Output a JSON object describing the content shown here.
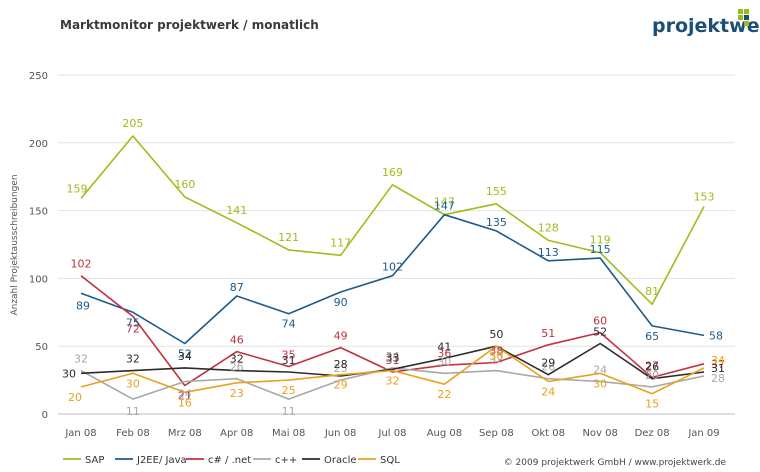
{
  "header": {
    "title": "Marktmonitor projektwerk / monatlich",
    "logo_text": "projektwerk"
  },
  "footer": {
    "copyright": "© 2009 projektwerk GmbH / www.projektwerk.de"
  },
  "chart_data": {
    "type": "line",
    "title": "Marktmonitor projektwerk / monatlich",
    "xlabel": "",
    "ylabel": "Anzahl Projektausschreibungen",
    "ylim": [
      0,
      250
    ],
    "yticks": [
      0,
      50,
      100,
      150,
      200,
      250
    ],
    "grid": true,
    "legend_position": "bottom",
    "categories": [
      "Jan 08",
      "Feb 08",
      "Mrz 08",
      "Apr 08",
      "Mai 08",
      "Jun 08",
      "Jul 08",
      "Aug 08",
      "Sep 08",
      "Okt 08",
      "Nov 08",
      "Dez 08",
      "Jan 09"
    ],
    "series": [
      {
        "name": "SAP",
        "color": "#9dbd1c",
        "values": [
          159,
          205,
          160,
          141,
          121,
          117,
          169,
          147,
          155,
          128,
          119,
          81,
          153
        ]
      },
      {
        "name": "J2EE/ Java",
        "color": "#1d5a8c",
        "values": [
          89,
          75,
          52,
          87,
          74,
          90,
          102,
          147,
          135,
          113,
          115,
          65,
          58
        ]
      },
      {
        "name": "c# / .net",
        "color": "#c0333e",
        "values": [
          102,
          72,
          21,
          46,
          35,
          49,
          31,
          36,
          38,
          51,
          60,
          27,
          37
        ]
      },
      {
        "name": "c++",
        "color": "#a8a8a8",
        "values": [
          32,
          11,
          24,
          26,
          11,
          25,
          34,
          30,
          32,
          26,
          24,
          20,
          28
        ]
      },
      {
        "name": "Oracle",
        "color": "#2b2b2b",
        "values": [
          30,
          32,
          34,
          32,
          31,
          28,
          33,
          41,
          50,
          29,
          52,
          26,
          31
        ]
      },
      {
        "name": "SQL",
        "color": "#e8a21c",
        "values": [
          20,
          30,
          16,
          23,
          25,
          29,
          32,
          22,
          50,
          24,
          30,
          15,
          34
        ]
      }
    ]
  }
}
